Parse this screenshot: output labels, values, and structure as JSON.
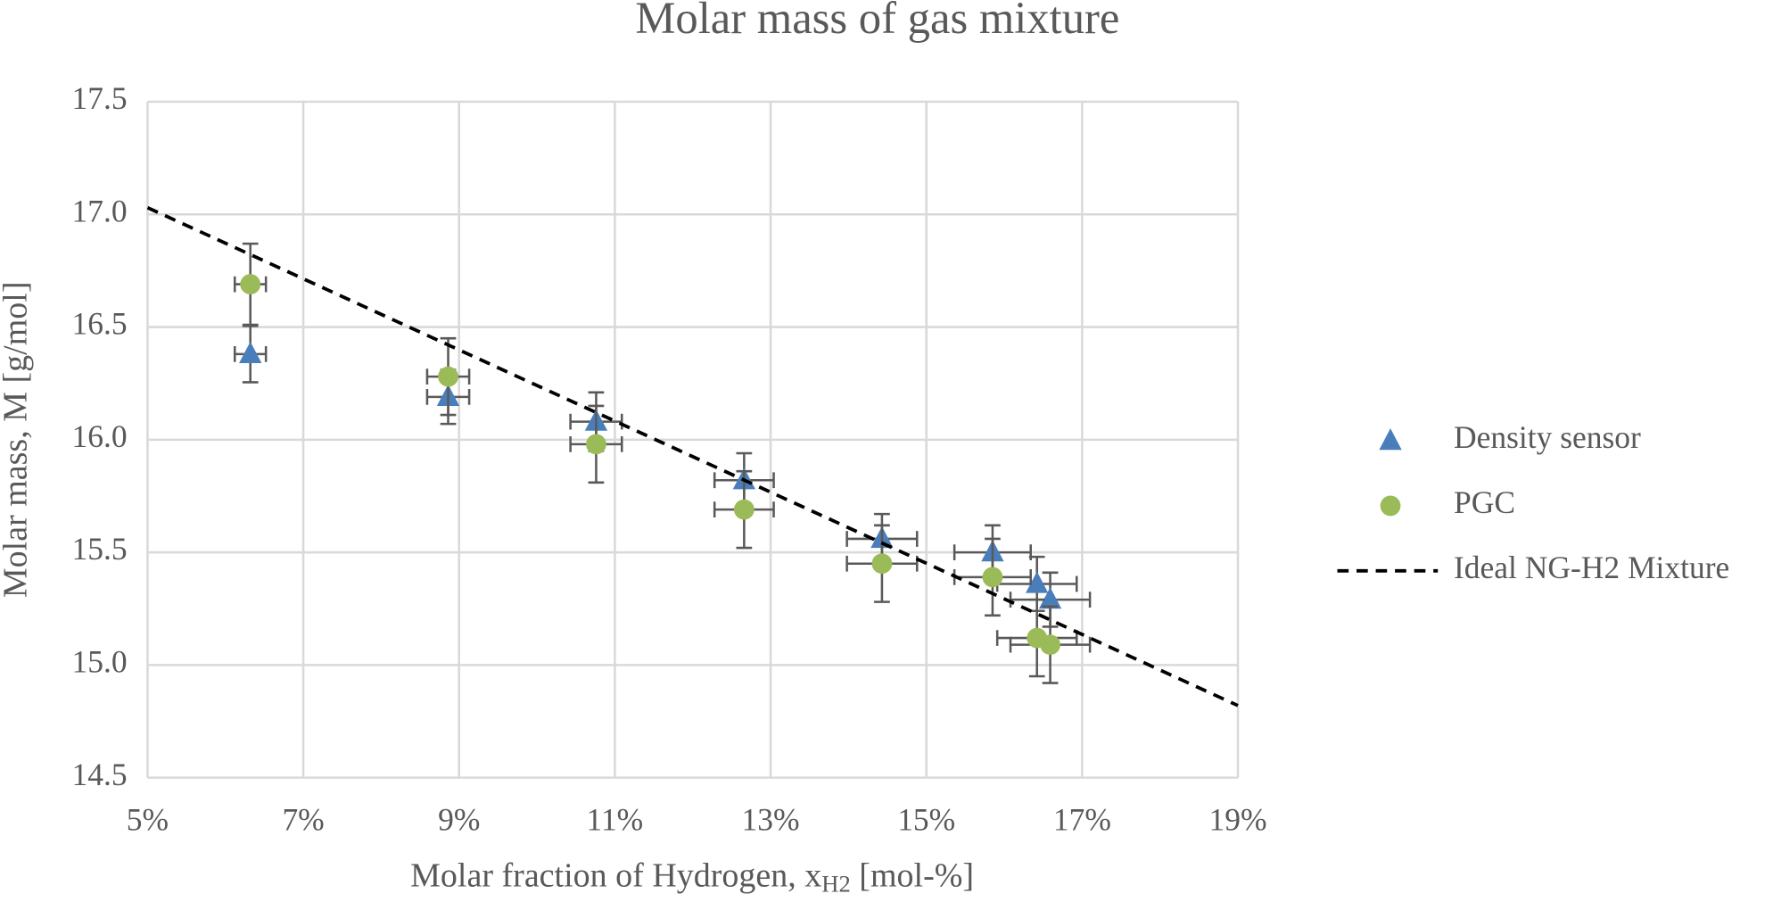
{
  "chart_data": {
    "type": "scatter",
    "title": "Molar mass of gas mixture",
    "xlabel": {
      "text": "Molar fraction of Hydrogen, x",
      "subscript": "H2",
      "suffix": " [mol-%]"
    },
    "ylabel": "Molar mass, M [g/mol]",
    "xlim": [
      5,
      19
    ],
    "xticks": [
      {
        "value": 5,
        "label": "5%"
      },
      {
        "value": 7,
        "label": "7%"
      },
      {
        "value": 9,
        "label": "9%"
      },
      {
        "value": 11,
        "label": "11%"
      },
      {
        "value": 13,
        "label": "13%"
      },
      {
        "value": 15,
        "label": "15%"
      },
      {
        "value": 17,
        "label": "17%"
      },
      {
        "value": 19,
        "label": "19%"
      }
    ],
    "ylim": [
      14.5,
      17.5
    ],
    "yticks": [
      {
        "value": 14.5,
        "label": "14.5"
      },
      {
        "value": 15,
        "label": "15.0"
      },
      {
        "value": 15.5,
        "label": "15.5"
      },
      {
        "value": 16,
        "label": "16.0"
      },
      {
        "value": 16.5,
        "label": "16.5"
      },
      {
        "value": 17,
        "label": "17.0"
      },
      {
        "value": 17.5,
        "label": "17.5"
      }
    ],
    "grid": true,
    "legend": "right",
    "series": [
      {
        "name": "Density sensor",
        "color": "#4a7ebb",
        "marker": "triangle",
        "x": [
          6.32,
          8.86,
          10.76,
          12.66,
          14.43,
          15.85,
          16.42,
          16.59
        ],
        "values": [
          16.38,
          16.19,
          16.08,
          15.82,
          15.56,
          15.5,
          15.36,
          15.29
        ],
        "x_err": [
          0.2,
          0.27,
          0.33,
          0.38,
          0.45,
          0.49,
          0.51,
          0.51
        ],
        "y_err": [
          0.125,
          0.12,
          0.13,
          0.12,
          0.11,
          0.12,
          0.12,
          0.12
        ]
      },
      {
        "name": "PGC",
        "color": "#9bbb59",
        "marker": "circle",
        "x": [
          6.32,
          8.86,
          10.76,
          12.66,
          14.43,
          15.85,
          16.42,
          16.59
        ],
        "values": [
          16.69,
          16.28,
          15.98,
          15.69,
          15.45,
          15.39,
          15.12,
          15.09
        ],
        "x_err": [
          0.2,
          0.27,
          0.33,
          0.38,
          0.45,
          0.49,
          0.51,
          0.51
        ],
        "y_err": [
          0.18,
          0.17,
          0.17,
          0.17,
          0.17,
          0.17,
          0.17,
          0.17
        ]
      },
      {
        "name": "Ideal NG-H2 Mixture",
        "color": "#000000",
        "marker": "dashed-line",
        "x": [
          5,
          19
        ],
        "values": [
          17.03,
          14.82
        ]
      }
    ]
  }
}
